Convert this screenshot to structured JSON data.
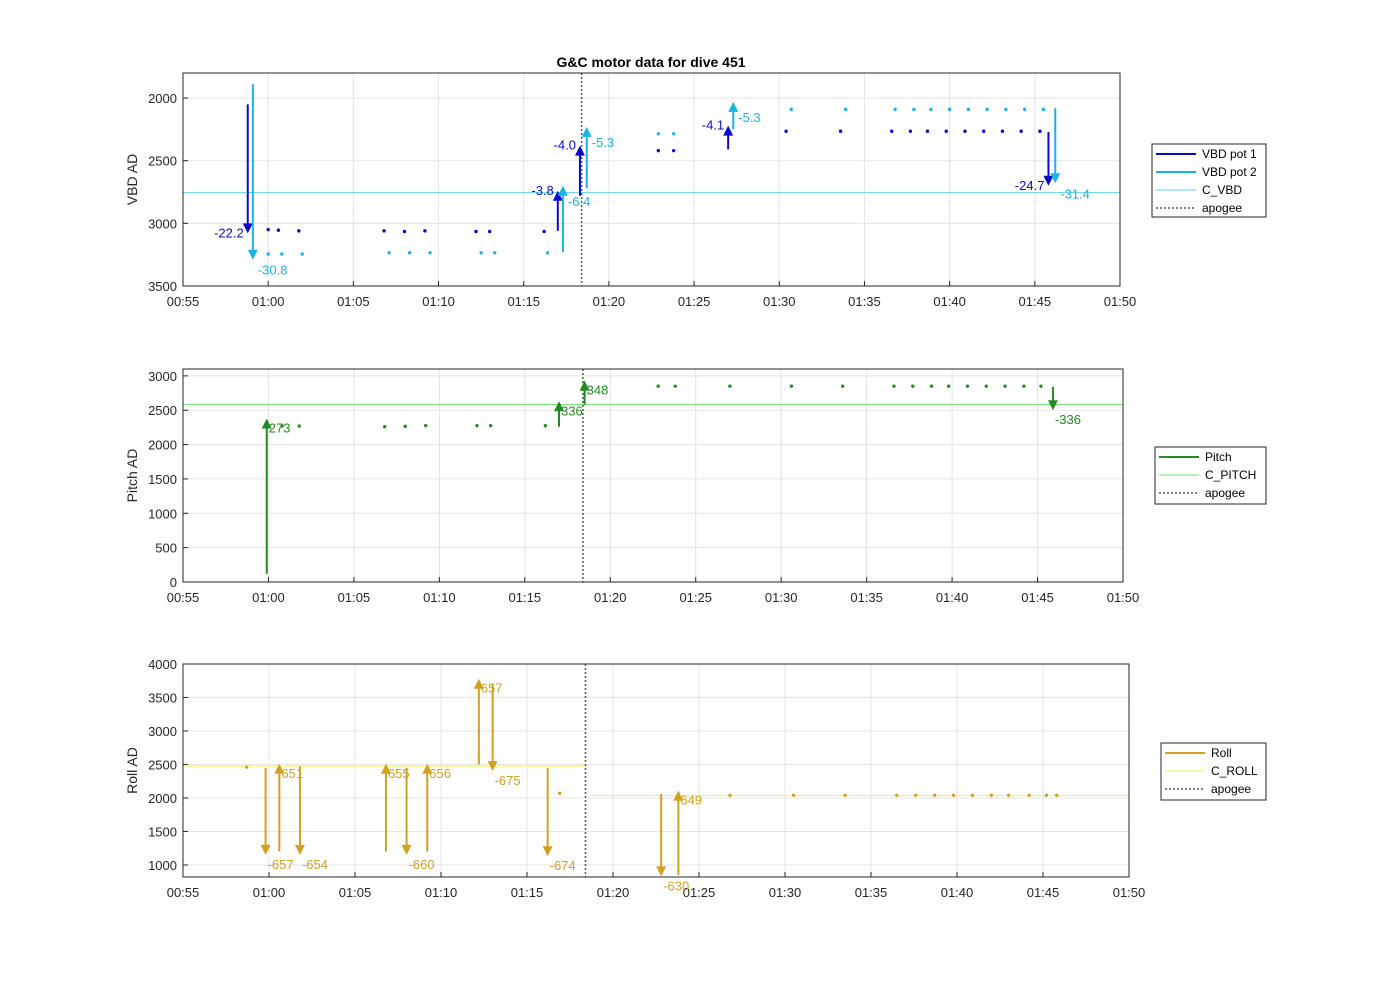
{
  "title": "G&C motor data for dive 451",
  "chart_data": [
    {
      "type": "line",
      "ylabel": "VBD AD",
      "ylim": [
        1800,
        3500
      ],
      "y_reversed": true,
      "yticks": [
        2000,
        2500,
        3000,
        3500
      ],
      "xlim": [
        "00:55",
        "01:50"
      ],
      "xticks": [
        "00:55",
        "01:00",
        "01:05",
        "01:10",
        "01:15",
        "01:20",
        "01:25",
        "01:30",
        "01:35",
        "01:40",
        "01:45",
        "01:50"
      ],
      "grid": true,
      "legend": {
        "placement": "outside-right",
        "entries": [
          "VBD pot 1",
          "VBD pot 2",
          "C_VBD",
          "apogee"
        ]
      },
      "colors": {
        "pot1": "#0a0ac8",
        "pot2": "#19b3e6",
        "c_vbd": "#5fd4e6",
        "apogee": "#555555"
      },
      "reference": {
        "name": "C_VBD",
        "y": 2755
      },
      "apogee_x": "01:18.4",
      "series": [
        {
          "name": "VBD pot 1",
          "points": [
            [
              "01:00.0",
              3050
            ],
            [
              "01:00.6",
              3055
            ],
            [
              "01:01.8",
              3060
            ],
            [
              "01:06.8",
              3060
            ],
            [
              "01:08.0",
              3065
            ],
            [
              "01:09.2",
              3060
            ],
            [
              "01:12.2",
              3065
            ],
            [
              "01:13.0",
              3065
            ],
            [
              "01:16.2",
              3065
            ],
            [
              "01:22.9",
              2420
            ],
            [
              "01:23.8",
              2420
            ],
            [
              "01:30.4",
              2265
            ],
            [
              "01:33.6",
              2265
            ],
            [
              "01:36.6",
              2265
            ],
            [
              "01:37.7",
              2265
            ],
            [
              "01:38.7",
              2265
            ],
            [
              "01:39.8",
              2265
            ],
            [
              "01:40.9",
              2265
            ],
            [
              "01:42.0",
              2265
            ],
            [
              "01:43.1",
              2265
            ],
            [
              "01:44.2",
              2265
            ],
            [
              "01:45.3",
              2265
            ]
          ],
          "moves": [
            {
              "x": "00:58.8",
              "from": 2050,
              "to": 3080,
              "label": "-22.2"
            },
            {
              "x": "01:17.0",
              "from": 3060,
              "to": 2740,
              "label": "-3.8"
            },
            {
              "x": "01:18.3",
              "from": 2780,
              "to": 2380,
              "label": "-4.0"
            },
            {
              "x": "01:27.0",
              "from": 2410,
              "to": 2220,
              "label": "-4.1"
            },
            {
              "x": "01:45.8",
              "from": 2270,
              "to": 2700,
              "label": "-24.7"
            }
          ]
        },
        {
          "name": "VBD pot 2",
          "points": [
            [
              "01:00.0",
              3245
            ],
            [
              "01:00.8",
              3245
            ],
            [
              "01:02.0",
              3245
            ],
            [
              "01:07.1",
              3235
            ],
            [
              "01:08.3",
              3235
            ],
            [
              "01:09.5",
              3235
            ],
            [
              "01:12.5",
              3235
            ],
            [
              "01:13.3",
              3235
            ],
            [
              "01:16.4",
              3235
            ],
            [
              "01:22.9",
              2285
            ],
            [
              "01:23.8",
              2285
            ],
            [
              "01:30.7",
              2090
            ],
            [
              "01:33.9",
              2090
            ],
            [
              "01:36.8",
              2090
            ],
            [
              "01:37.9",
              2090
            ],
            [
              "01:38.9",
              2090
            ],
            [
              "01:40.0",
              2090
            ],
            [
              "01:41.1",
              2090
            ],
            [
              "01:42.2",
              2090
            ],
            [
              "01:43.3",
              2090
            ],
            [
              "01:44.4",
              2090
            ],
            [
              "01:45.5",
              2090
            ]
          ],
          "moves": [
            {
              "x": "00:59.1",
              "from": 1890,
              "to": 3290,
              "label": "-30.8"
            },
            {
              "x": "01:17.3",
              "from": 3230,
              "to": 2700,
              "label": "-6.4"
            },
            {
              "x": "01:18.7",
              "from": 2720,
              "to": 2230,
              "label": "-5.3"
            },
            {
              "x": "01:27.3",
              "from": 2250,
              "to": 2030,
              "label": "-5.3"
            },
            {
              "x": "01:46.2",
              "from": 2080,
              "to": 2680,
              "label": "-31.4"
            }
          ]
        }
      ]
    },
    {
      "type": "line",
      "ylabel": "Pitch AD",
      "ylim": [
        0,
        3100
      ],
      "yticks": [
        0,
        500,
        1000,
        1500,
        2000,
        2500,
        3000
      ],
      "xlim": [
        "00:55",
        "01:50"
      ],
      "xticks": [
        "00:55",
        "01:00",
        "01:05",
        "01:10",
        "01:15",
        "01:20",
        "01:25",
        "01:30",
        "01:35",
        "01:40",
        "01:45",
        "01:50"
      ],
      "grid": true,
      "legend": {
        "placement": "outside-right",
        "entries": [
          "Pitch",
          "C_PITCH",
          "apogee"
        ]
      },
      "colors": {
        "pitch": "#218c21",
        "c_pitch": "#6fe06f",
        "apogee": "#555555"
      },
      "reference": {
        "name": "C_PITCH",
        "y": 2585
      },
      "apogee_x": "01:18.4",
      "series": [
        {
          "name": "Pitch",
          "points": [
            [
              "01:00.8",
              2270
            ],
            [
              "01:01.8",
              2270
            ],
            [
              "01:06.8",
              2260
            ],
            [
              "01:08.0",
              2265
            ],
            [
              "01:09.2",
              2275
            ],
            [
              "01:12.2",
              2275
            ],
            [
              "01:13.0",
              2275
            ],
            [
              "01:16.2",
              2275
            ],
            [
              "01:22.8",
              2850
            ],
            [
              "01:23.8",
              2850
            ],
            [
              "01:27.0",
              2850
            ],
            [
              "01:30.6",
              2850
            ],
            [
              "01:33.6",
              2850
            ],
            [
              "01:36.6",
              2850
            ],
            [
              "01:37.7",
              2850
            ],
            [
              "01:38.8",
              2850
            ],
            [
              "01:39.8",
              2850
            ],
            [
              "01:40.9",
              2850
            ],
            [
              "01:42.0",
              2850
            ],
            [
              "01:43.1",
              2850
            ],
            [
              "01:44.2",
              2850
            ],
            [
              "01:45.2",
              2850
            ]
          ],
          "moves": [
            {
              "x": "00:59.9",
              "from": 120,
              "to": 2380,
              "label": "273"
            },
            {
              "x": "01:17.0",
              "from": 2260,
              "to": 2630,
              "label": "336"
            },
            {
              "x": "01:18.5",
              "from": 2580,
              "to": 2930,
              "label": "348"
            },
            {
              "x": "01:45.9",
              "from": 2840,
              "to": 2500,
              "label": "-336"
            }
          ]
        }
      ]
    },
    {
      "type": "line",
      "ylabel": "Roll AD",
      "ylim": [
        820,
        4000
      ],
      "yticks": [
        1000,
        1500,
        2000,
        2500,
        3000,
        3500,
        4000
      ],
      "xlim": [
        "00:55",
        "01:50"
      ],
      "xticks": [
        "00:55",
        "01:00",
        "01:05",
        "01:10",
        "01:15",
        "01:20",
        "01:25",
        "01:30",
        "01:35",
        "01:40",
        "01:45",
        "01:50"
      ],
      "grid": true,
      "legend": {
        "placement": "outside-right",
        "entries": [
          "Roll",
          "C_ROLL",
          "apogee"
        ]
      },
      "colors": {
        "roll": "#d4a020",
        "c_roll": "#f0f05a",
        "apogee": "#555555"
      },
      "reference_segments": [
        {
          "name": "C_ROLL",
          "x0": "00:55",
          "x1": "01:18.4",
          "y": 2475
        },
        {
          "name": "C_ROLL",
          "x0": "01:18.4",
          "x1": "01:50",
          "y": 2035
        }
      ],
      "apogee_x": "01:18.4",
      "series": [
        {
          "name": "Roll",
          "points": [
            [
              "00:58.7",
              2460
            ],
            [
              "01:16.9",
              2070
            ],
            [
              "01:26.8",
              2040
            ],
            [
              "01:30.5",
              2040
            ],
            [
              "01:33.5",
              2040
            ],
            [
              "01:36.5",
              2040
            ],
            [
              "01:37.6",
              2040
            ],
            [
              "01:38.7",
              2040
            ],
            [
              "01:39.8",
              2040
            ],
            [
              "01:40.9",
              2040
            ],
            [
              "01:42.0",
              2040
            ],
            [
              "01:43.0",
              2040
            ],
            [
              "01:44.2",
              2040
            ],
            [
              "01:45.2",
              2040
            ],
            [
              "01:45.8",
              2040
            ]
          ],
          "moves": [
            {
              "x": "00:59.8",
              "from": 2450,
              "to": 1150,
              "label": "-657"
            },
            {
              "x": "01:00.6",
              "from": 1200,
              "to": 2510,
              "label": "651"
            },
            {
              "x": "01:01.8",
              "from": 2470,
              "to": 1150,
              "label": "-654"
            },
            {
              "x": "01:06.8",
              "from": 1200,
              "to": 2510,
              "label": "655"
            },
            {
              "x": "01:08.0",
              "from": 2450,
              "to": 1150,
              "label": "-660"
            },
            {
              "x": "01:09.2",
              "from": 1200,
              "to": 2510,
              "label": "656"
            },
            {
              "x": "01:12.2",
              "from": 2500,
              "to": 3780,
              "label": "657"
            },
            {
              "x": "01:13.0",
              "from": 3700,
              "to": 2400,
              "label": "-675"
            },
            {
              "x": "01:16.2",
              "from": 2450,
              "to": 1130,
              "label": "-674"
            },
            {
              "x": "01:22.8",
              "from": 2060,
              "to": 830,
              "label": "-630"
            },
            {
              "x": "01:23.8",
              "from": 850,
              "to": 2110,
              "label": "649"
            }
          ]
        }
      ]
    }
  ]
}
